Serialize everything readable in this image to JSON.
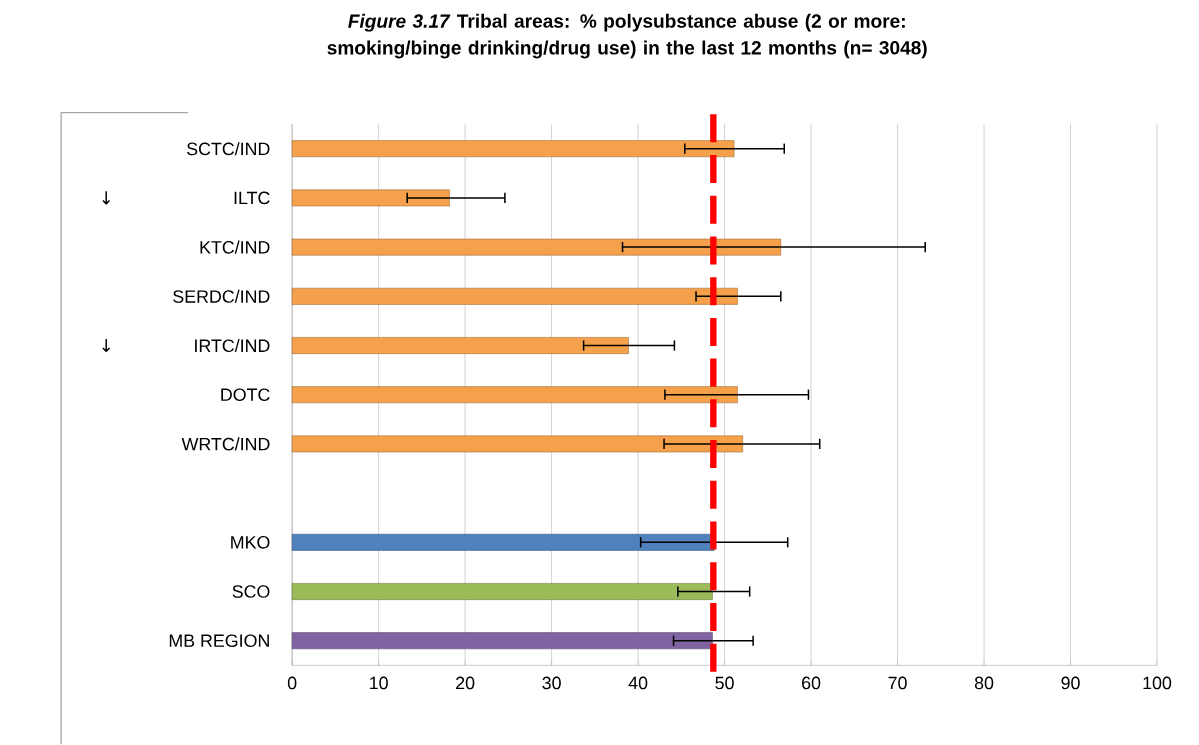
{
  "chart_data": {
    "type": "bar",
    "orientation": "horizontal",
    "title": "*Figure 3.17*    Tribal areas: % polysubstance abuse (2 or more: smoking/binge drinking/drug use) in the last 12 months (n= 3048)",
    "categories": [
      "SCTC/IND",
      "ILTC",
      "KTC/IND",
      "SERDC/IND",
      "IRTC/IND",
      "DOTC",
      "WRTC/IND",
      null,
      "MKO",
      "SCO",
      "MB REGION"
    ],
    "values": [
      51.1,
      18.2,
      56.5,
      51.5,
      38.9,
      51.5,
      52.1,
      null,
      48.8,
      48.6,
      48.6
    ],
    "errors": [
      [
        45.4,
        56.9
      ],
      [
        13.3,
        24.6
      ],
      [
        38.2,
        73.2
      ],
      [
        46.7,
        56.5
      ],
      [
        33.7,
        44.2
      ],
      [
        43.1,
        59.7
      ],
      [
        43.0,
        61.0
      ],
      null,
      [
        40.3,
        57.3
      ],
      [
        44.6,
        52.9
      ],
      [
        44.1,
        53.3
      ]
    ],
    "colors": [
      "#f5a04a",
      "#f5a04a",
      "#f5a04a",
      "#f5a04a",
      "#f5a04a",
      "#f5a04a",
      "#f5a04a",
      null,
      "#4f81bd",
      "#9bbb59",
      "#8064a2"
    ],
    "xlim": [
      0,
      100
    ],
    "xticks": [
      0,
      10,
      20,
      30,
      40,
      50,
      60,
      70,
      80,
      90,
      100
    ],
    "grid": "x",
    "ref_lines": [
      {
        "axis": "x",
        "value": 48.7,
        "color": "#ff0000",
        "line_style": "dashed"
      }
    ],
    "annotations": [
      "↓",
      "↓"
    ]
  }
}
